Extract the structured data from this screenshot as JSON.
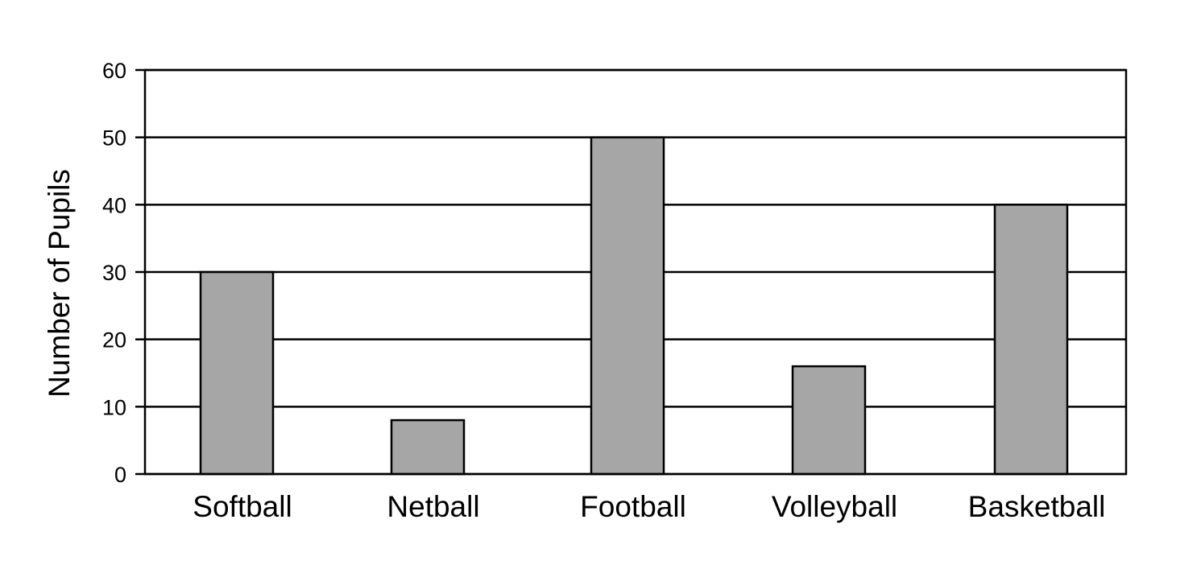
{
  "chart_data": {
    "type": "bar",
    "title": "",
    "xlabel": "",
    "ylabel": "Number of Pupils",
    "categories": [
      "Softball",
      "Netball",
      "Football",
      "Volleyball",
      "Basketball"
    ],
    "values": [
      30,
      8,
      50,
      16,
      40
    ],
    "ylim": [
      0,
      60
    ],
    "yticks": [
      0,
      10,
      20,
      30,
      40,
      50,
      60
    ],
    "grid": true,
    "legend": "none",
    "colors": {
      "bar_fill": "#a6a6a6",
      "bar_stroke": "#000000",
      "grid": "#000000"
    }
  }
}
